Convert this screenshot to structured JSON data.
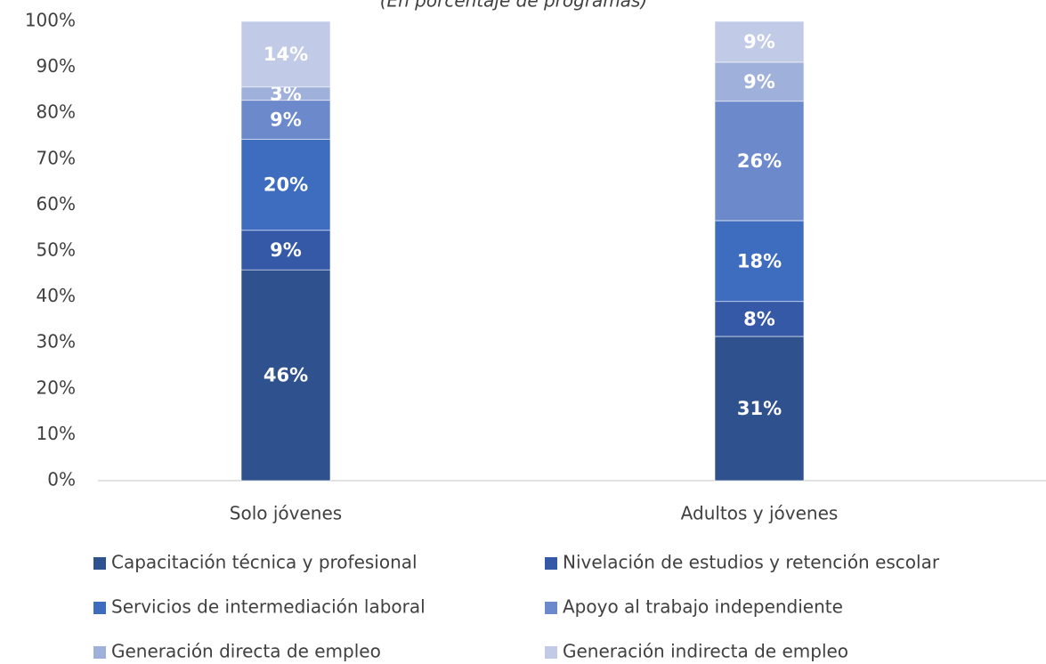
{
  "chart_data": {
    "type": "stacked_bar",
    "subtitle": "(En porcentaje de programas)",
    "categories": [
      "Solo jóvenes",
      "Adultos y jóvenes"
    ],
    "series": [
      {
        "name": "Capacitación técnica y profesional",
        "color": "#2f528f",
        "values": [
          45.9,
          31.4
        ],
        "value_labels": [
          "46%",
          "31%"
        ]
      },
      {
        "name": "Nivelación de estudios y retención escolar",
        "color": "#3559a6",
        "values": [
          8.6,
          7.6
        ],
        "value_labels": [
          "9%",
          "8%"
        ]
      },
      {
        "name": "Servicios de intermediación laboral",
        "color": "#3e6dbf",
        "values": [
          19.8,
          17.6
        ],
        "value_labels": [
          "20%",
          "18%"
        ]
      },
      {
        "name": "Apoyo al trabajo independiente",
        "color": "#6c8acb",
        "values": [
          8.5,
          26.0
        ],
        "value_labels": [
          "9%",
          "26%"
        ]
      },
      {
        "name": "Generación directa de empleo",
        "color": "#9fb0da",
        "values": [
          2.9,
          8.5
        ],
        "value_labels": [
          "3%",
          "9%"
        ]
      },
      {
        "name": "Generación indirecta de empleo",
        "color": "#c1cae6",
        "values": [
          14.3,
          8.9
        ],
        "value_labels": [
          "14%",
          "9%"
        ]
      }
    ],
    "ylim": [
      0,
      100
    ],
    "yticks": [
      {
        "value": 0,
        "label": "0%"
      },
      {
        "value": 10,
        "label": "10%"
      },
      {
        "value": 20,
        "label": "20%"
      },
      {
        "value": 30,
        "label": "30%"
      },
      {
        "value": 40,
        "label": "40%"
      },
      {
        "value": 50,
        "label": "50%"
      },
      {
        "value": 60,
        "label": "60%"
      },
      {
        "value": 70,
        "label": "70%"
      },
      {
        "value": 80,
        "label": "80%"
      },
      {
        "value": 90,
        "label": "90%"
      },
      {
        "value": 100,
        "label": "100%"
      }
    ],
    "legend": "bottom"
  }
}
